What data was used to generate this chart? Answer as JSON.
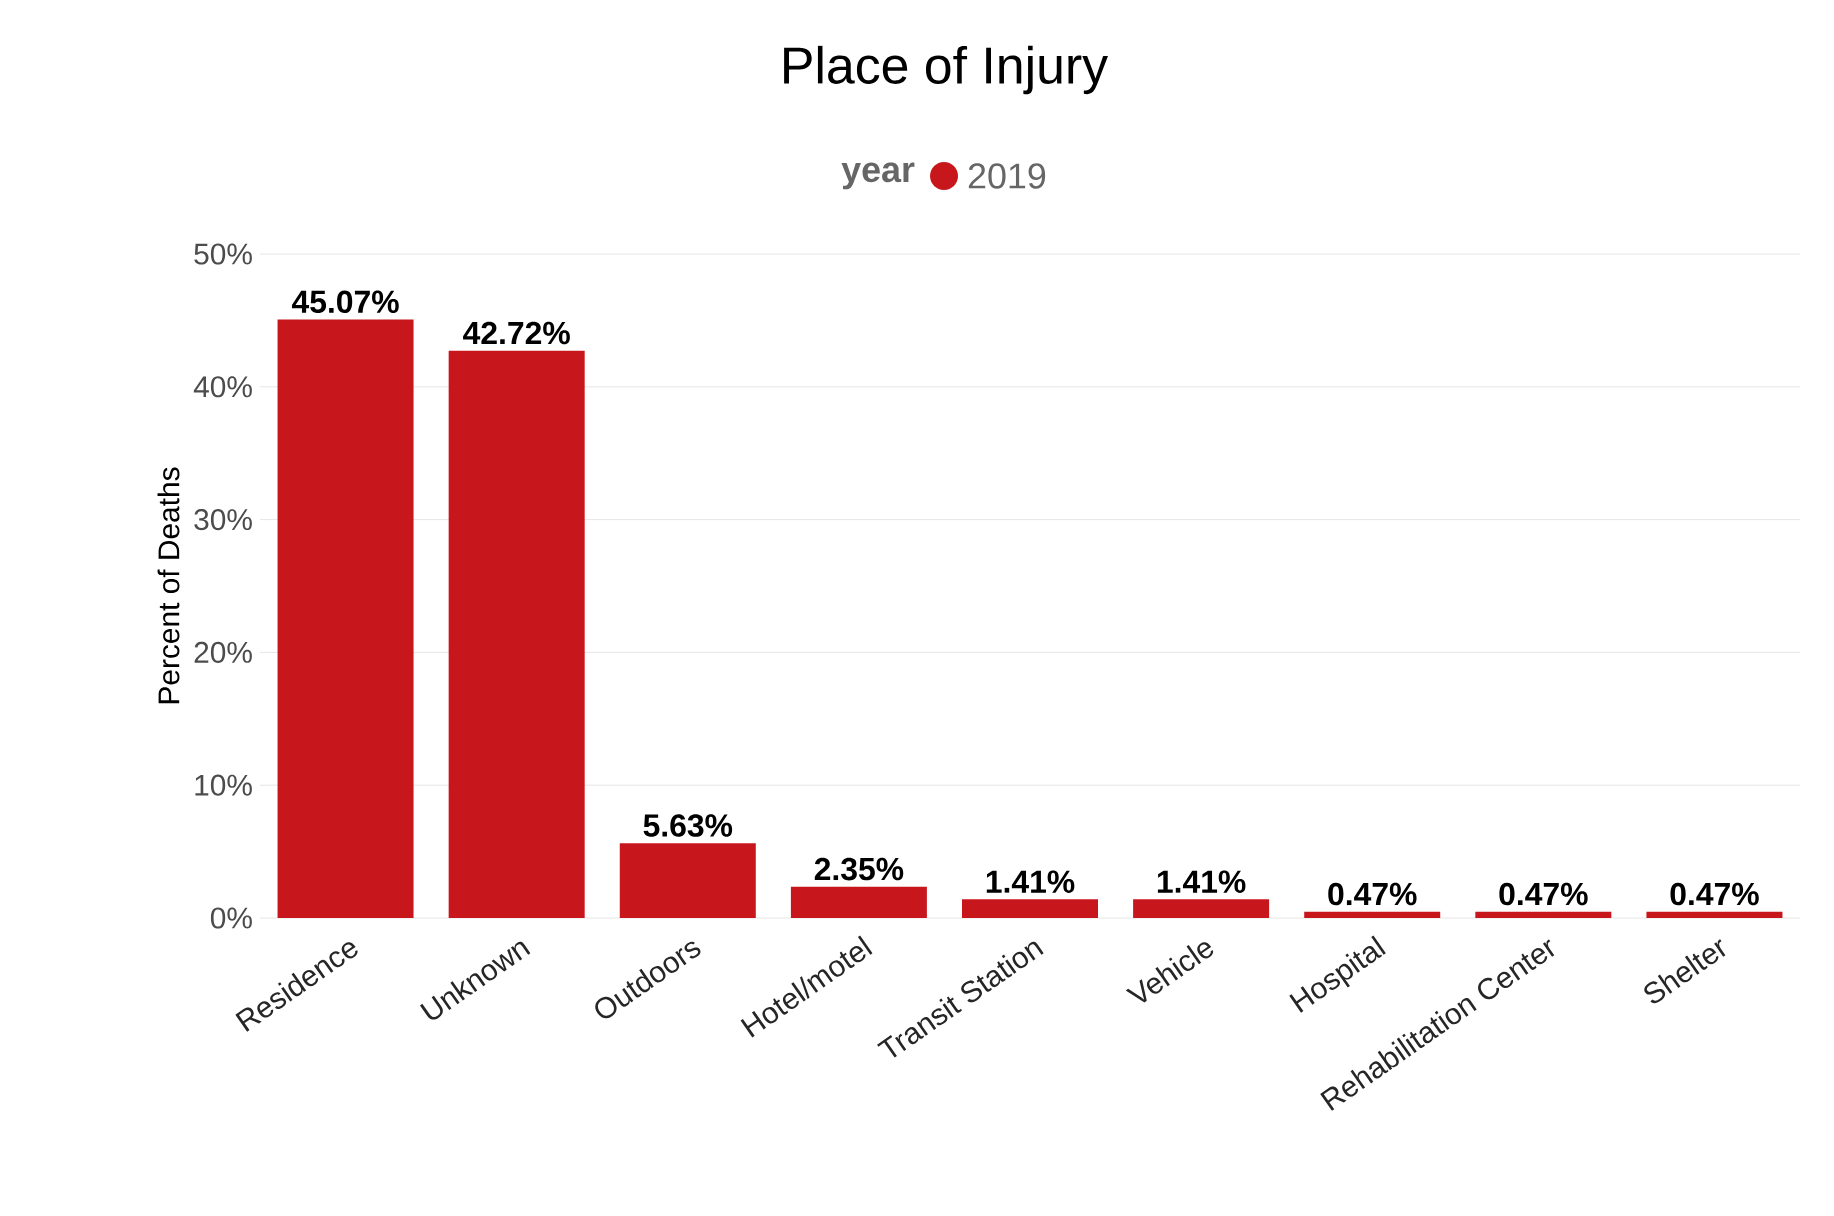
{
  "chart_data": {
    "type": "bar",
    "title": "Place of Injury",
    "legend_title": "year",
    "ylabel": "Percent of Deaths",
    "categories": [
      "Residence",
      "Unknown",
      "Outdoors",
      "Hotel/motel",
      "Transit Station",
      "Vehicle",
      "Hospital",
      "Rehabilitation Center",
      "Shelter"
    ],
    "series": [
      {
        "name": "2019",
        "color": "#c8161d",
        "values": [
          45.07,
          42.72,
          5.63,
          2.35,
          1.41,
          1.41,
          0.47,
          0.47,
          0.47
        ],
        "value_labels": [
          "45.07%",
          "42.72%",
          "5.63%",
          "2.35%",
          "1.41%",
          "1.41%",
          "0.47%",
          "0.47%",
          "0.47%"
        ]
      }
    ],
    "ylim": [
      0,
      50
    ],
    "yticks": [
      {
        "value": 0,
        "label": "0%"
      },
      {
        "value": 10,
        "label": "10%"
      },
      {
        "value": 20,
        "label": "20%"
      },
      {
        "value": 30,
        "label": "30%"
      },
      {
        "value": 40,
        "label": "40%"
      },
      {
        "value": 50,
        "label": "50%"
      }
    ],
    "grid": "y",
    "legend": "top"
  }
}
